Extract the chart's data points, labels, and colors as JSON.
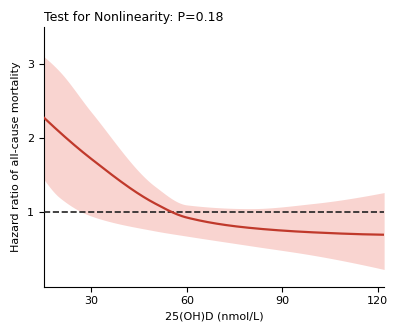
{
  "title": "Test for Nonlinearity: P=0.18",
  "xlabel": "25(OH)D (nmol/L)",
  "ylabel": "Hazard ratio of all-cause mortality",
  "xlim": [
    15,
    122
  ],
  "ylim": [
    0,
    3.5
  ],
  "xticks": [
    30,
    60,
    90,
    120
  ],
  "yticks": [
    1,
    2,
    3
  ],
  "ref_line_y": 1.0,
  "curve_color": "#c0392b",
  "ci_color": "#f1948a",
  "ci_alpha": 0.4,
  "line_width": 1.6,
  "dashed_color": "#222222",
  "background_color": "#ffffff",
  "title_fontsize": 9,
  "axis_fontsize": 8,
  "tick_fontsize": 8,
  "x_start": 15,
  "x_end": 122,
  "curve_anchor_x": [
    15,
    30,
    50,
    60,
    80,
    100,
    120
  ],
  "curve_anchor_y": [
    2.28,
    1.72,
    1.12,
    0.93,
    0.79,
    0.73,
    0.7
  ],
  "upper_anchor_x": [
    15,
    20,
    30,
    50,
    60,
    80,
    100,
    120
  ],
  "upper_anchor_y": [
    3.1,
    2.9,
    2.35,
    1.35,
    1.1,
    1.05,
    1.12,
    1.25
  ],
  "lower_anchor_x": [
    15,
    20,
    30,
    50,
    60,
    80,
    100,
    120
  ],
  "lower_anchor_y": [
    1.45,
    1.2,
    0.95,
    0.75,
    0.68,
    0.55,
    0.42,
    0.25
  ]
}
